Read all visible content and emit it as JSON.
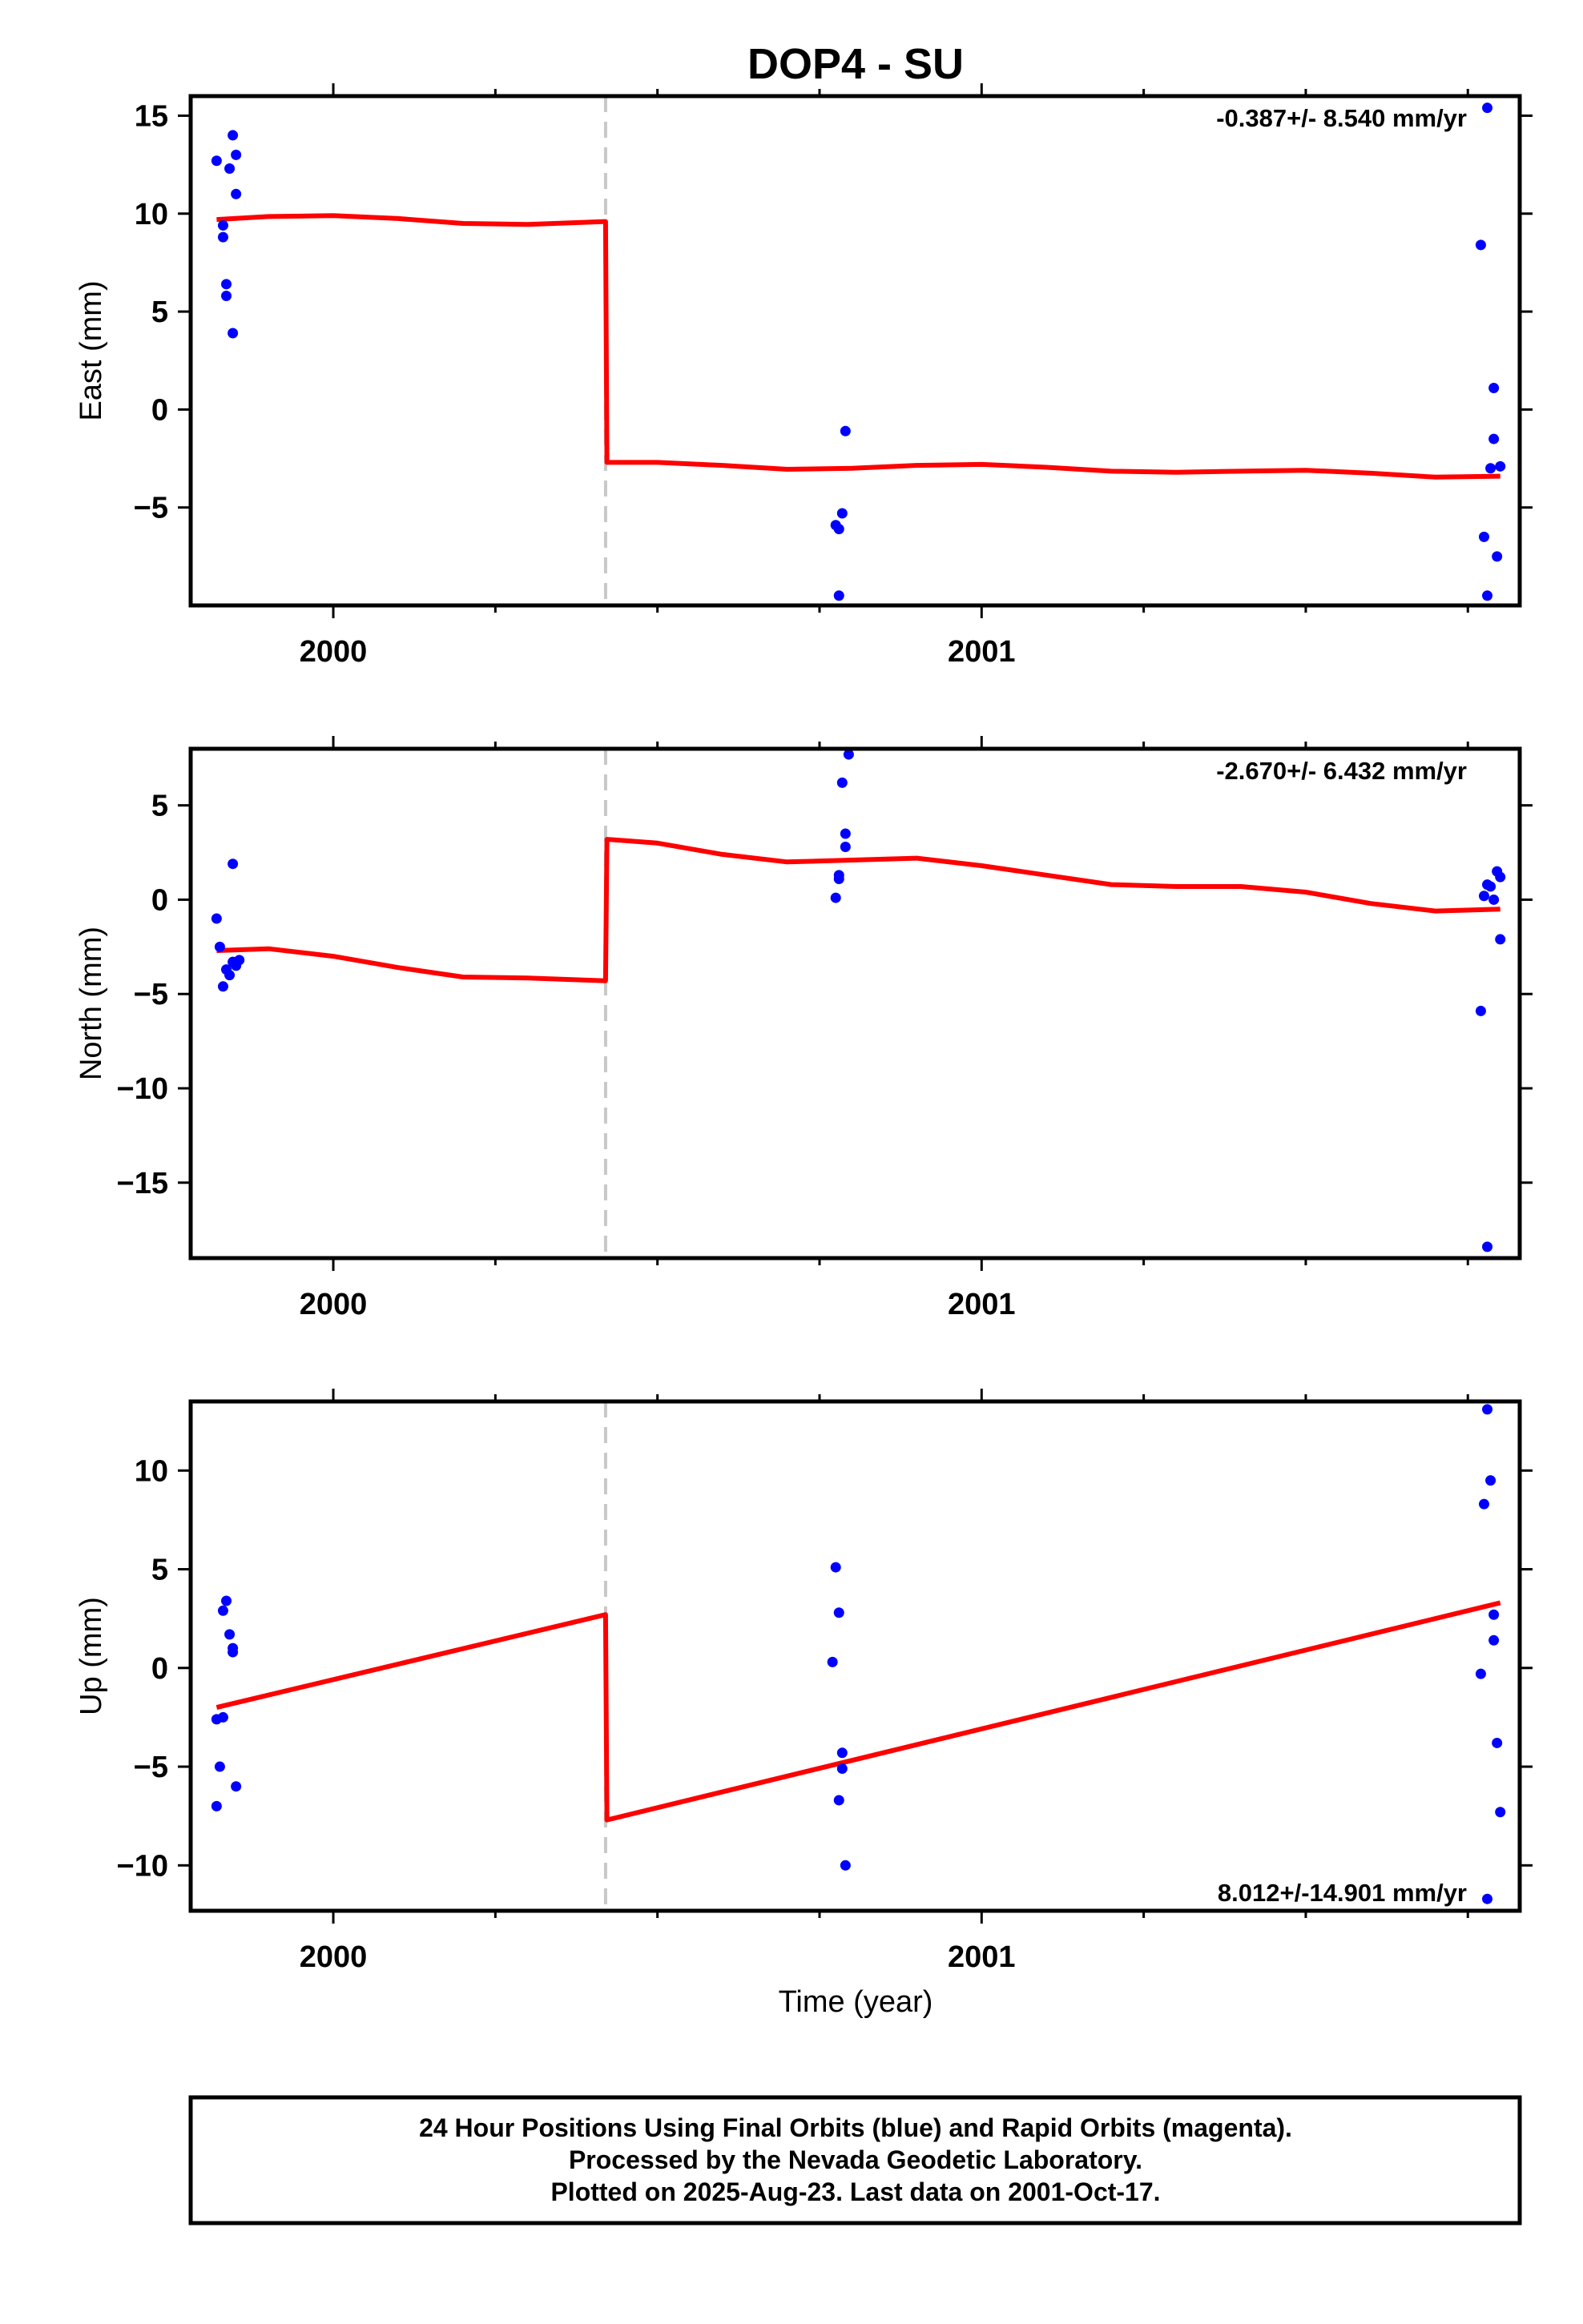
{
  "title": "DOP4 - SU",
  "xlabel": "Time (year)",
  "x_tick_labels": [
    "2000",
    "2001"
  ],
  "footer": {
    "line1": "24 Hour Positions Using Final Orbits (blue) and Rapid Orbits (magenta).",
    "line2": "Processed by the Nevada Geodetic Laboratory.",
    "line3": "Plotted on 2025-Aug-23. Last data on 2001-Oct-17."
  },
  "colors": {
    "data": "#0000ff",
    "model": "#ff0000",
    "break": "#c8c8c8",
    "frame": "#000000"
  },
  "chart_data": [
    {
      "type": "scatter",
      "ylabel": "East (mm)",
      "rate_label": "-0.387+/- 8.540 mm/yr",
      "rate_position": "top-right",
      "xlim": [
        1999.78,
        2001.83
      ],
      "ylim": [
        -10,
        16
      ],
      "x_ticks": [
        2000,
        2001
      ],
      "x_minor": [
        2000.25,
        2000.5,
        2000.75,
        2001.25,
        2001.5,
        2001.75
      ],
      "y_ticks": [
        15,
        10,
        5,
        0,
        -5
      ],
      "break_x": 2000.42,
      "points": [
        [
          1999.82,
          12.7
        ],
        [
          1999.83,
          9.4
        ],
        [
          1999.83,
          8.8
        ],
        [
          1999.835,
          6.4
        ],
        [
          1999.835,
          5.8
        ],
        [
          1999.84,
          12.3
        ],
        [
          1999.845,
          14.0
        ],
        [
          1999.845,
          3.9
        ],
        [
          1999.85,
          13.0
        ],
        [
          1999.85,
          11.0
        ],
        [
          2000.775,
          -5.9
        ],
        [
          2000.78,
          -6.1
        ],
        [
          2000.78,
          -9.5
        ],
        [
          2000.785,
          -5.3
        ],
        [
          2000.79,
          -1.1
        ],
        [
          2001.77,
          8.4
        ],
        [
          2001.775,
          -6.5
        ],
        [
          2001.78,
          15.4
        ],
        [
          2001.78,
          -9.5
        ],
        [
          2001.785,
          -3.0
        ],
        [
          2001.79,
          -1.5
        ],
        [
          2001.79,
          1.1
        ],
        [
          2001.795,
          -7.5
        ],
        [
          2001.8,
          -2.9
        ]
      ],
      "model": [
        [
          1999.82,
          9.7
        ],
        [
          1999.9,
          9.85
        ],
        [
          2000.0,
          9.9
        ],
        [
          2000.1,
          9.75
        ],
        [
          2000.2,
          9.5
        ],
        [
          2000.3,
          9.45
        ],
        [
          2000.42,
          9.6
        ],
        [
          2000.422,
          -2.7
        ],
        [
          2000.5,
          -2.7
        ],
        [
          2000.6,
          -2.85
        ],
        [
          2000.7,
          -3.05
        ],
        [
          2000.8,
          -3.0
        ],
        [
          2000.9,
          -2.85
        ],
        [
          2001.0,
          -2.8
        ],
        [
          2001.1,
          -2.95
        ],
        [
          2001.2,
          -3.15
        ],
        [
          2001.3,
          -3.2
        ],
        [
          2001.4,
          -3.15
        ],
        [
          2001.5,
          -3.1
        ],
        [
          2001.6,
          -3.25
        ],
        [
          2001.7,
          -3.45
        ],
        [
          2001.8,
          -3.4
        ]
      ]
    },
    {
      "type": "scatter",
      "ylabel": "North (mm)",
      "rate_label": "-2.670+/- 6.432 mm/yr",
      "rate_position": "top-right",
      "xlim": [
        1999.78,
        2001.83
      ],
      "ylim": [
        -19,
        8
      ],
      "x_ticks": [
        2000,
        2001
      ],
      "x_minor": [
        2000.25,
        2000.5,
        2000.75,
        2001.25,
        2001.5,
        2001.75
      ],
      "y_ticks": [
        5,
        0,
        -5,
        -10,
        -15
      ],
      "break_x": 2000.42,
      "points": [
        [
          1999.82,
          -1.0
        ],
        [
          1999.825,
          -2.5
        ],
        [
          1999.83,
          -4.6
        ],
        [
          1999.835,
          -3.7
        ],
        [
          1999.84,
          -4.0
        ],
        [
          1999.845,
          -3.3
        ],
        [
          1999.845,
          1.9
        ],
        [
          1999.85,
          -3.5
        ],
        [
          1999.855,
          -3.2
        ],
        [
          2000.775,
          0.1
        ],
        [
          2000.78,
          1.3
        ],
        [
          2000.78,
          1.1
        ],
        [
          2000.785,
          6.2
        ],
        [
          2000.79,
          3.5
        ],
        [
          2000.79,
          2.8
        ],
        [
          2000.795,
          7.7
        ],
        [
          2001.77,
          -5.9
        ],
        [
          2001.775,
          0.2
        ],
        [
          2001.78,
          0.8
        ],
        [
          2001.78,
          -18.4
        ],
        [
          2001.785,
          0.7
        ],
        [
          2001.79,
          0.0
        ],
        [
          2001.795,
          1.5
        ],
        [
          2001.8,
          -2.1
        ],
        [
          2001.8,
          1.2
        ]
      ],
      "model": [
        [
          1999.82,
          -2.7
        ],
        [
          1999.9,
          -2.6
        ],
        [
          2000.0,
          -3.0
        ],
        [
          2000.1,
          -3.6
        ],
        [
          2000.2,
          -4.1
        ],
        [
          2000.3,
          -4.15
        ],
        [
          2000.42,
          -4.3
        ],
        [
          2000.422,
          3.2
        ],
        [
          2000.5,
          3.0
        ],
        [
          2000.6,
          2.4
        ],
        [
          2000.7,
          2.0
        ],
        [
          2000.8,
          2.1
        ],
        [
          2000.9,
          2.2
        ],
        [
          2001.0,
          1.8
        ],
        [
          2001.1,
          1.3
        ],
        [
          2001.2,
          0.8
        ],
        [
          2001.3,
          0.7
        ],
        [
          2001.4,
          0.7
        ],
        [
          2001.5,
          0.4
        ],
        [
          2001.6,
          -0.2
        ],
        [
          2001.7,
          -0.6
        ],
        [
          2001.8,
          -0.5
        ]
      ]
    },
    {
      "type": "scatter",
      "ylabel": "Up (mm)",
      "rate_label": "8.012+/-14.901 mm/yr",
      "rate_position": "bottom-right",
      "xlim": [
        1999.78,
        2001.83
      ],
      "ylim": [
        -12.3,
        13.5
      ],
      "x_ticks": [
        2000,
        2001
      ],
      "x_minor": [
        2000.25,
        2000.5,
        2000.75,
        2001.25,
        2001.5,
        2001.75
      ],
      "y_ticks": [
        10,
        5,
        0,
        -5,
        -10
      ],
      "break_x": 2000.42,
      "points": [
        [
          1999.82,
          -2.6
        ],
        [
          1999.82,
          -7.0
        ],
        [
          1999.825,
          -5.0
        ],
        [
          1999.83,
          2.9
        ],
        [
          1999.83,
          -2.5
        ],
        [
          1999.835,
          3.4
        ],
        [
          1999.84,
          1.7
        ],
        [
          1999.845,
          0.8
        ],
        [
          1999.845,
          1.0
        ],
        [
          1999.85,
          -6.0
        ],
        [
          2000.77,
          0.3
        ],
        [
          2000.775,
          5.1
        ],
        [
          2000.78,
          2.8
        ],
        [
          2000.78,
          -6.7
        ],
        [
          2000.785,
          -4.3
        ],
        [
          2000.785,
          -5.1
        ],
        [
          2000.79,
          -10.0
        ],
        [
          2001.77,
          -0.3
        ],
        [
          2001.775,
          8.3
        ],
        [
          2001.78,
          13.1
        ],
        [
          2001.78,
          -11.7
        ],
        [
          2001.785,
          9.5
        ],
        [
          2001.79,
          1.4
        ],
        [
          2001.79,
          2.7
        ],
        [
          2001.795,
          -3.8
        ],
        [
          2001.8,
          -7.3
        ]
      ],
      "model": [
        [
          1999.82,
          -2.0
        ],
        [
          2000.42,
          2.7
        ],
        [
          2000.422,
          -7.7
        ],
        [
          2001.8,
          3.3
        ]
      ]
    }
  ]
}
